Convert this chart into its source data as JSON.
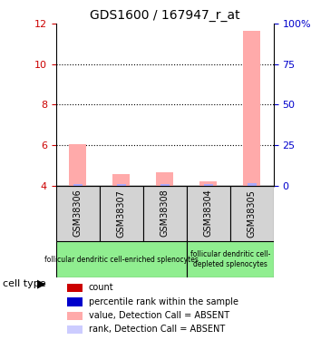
{
  "title": "GDS1600 / 167947_r_at",
  "samples": [
    "GSM38306",
    "GSM38307",
    "GSM38308",
    "GSM38304",
    "GSM38305"
  ],
  "pink_bar_values": [
    6.05,
    4.55,
    4.65,
    4.2,
    11.65
  ],
  "blue_bar_values": [
    4.05,
    4.05,
    4.05,
    4.05,
    4.1
  ],
  "ylim": [
    4,
    12
  ],
  "yticks_left": [
    4,
    6,
    8,
    10,
    12
  ],
  "yticks_right": [
    0,
    25,
    50,
    75,
    100
  ],
  "ylabel_left_color": "#cc0000",
  "ylabel_right_color": "#0000cc",
  "group1_samples": [
    "GSM38306",
    "GSM38307",
    "GSM38308"
  ],
  "group2_samples": [
    "GSM38304",
    "GSM38305"
  ],
  "group1_label": "follicular dendritic cell-enriched splenocytes",
  "group2_label": "follicular dendritic cell-\ndepleted splenocytes",
  "group1_color": "#90ee90",
  "group2_color": "#90ee90",
  "sample_box_color": "#d3d3d3",
  "cell_type_label": "cell type",
  "legend_items": [
    {
      "color": "#cc0000",
      "label": "count"
    },
    {
      "color": "#0000cc",
      "label": "percentile rank within the sample"
    },
    {
      "color": "#ffaaaa",
      "label": "value, Detection Call = ABSENT"
    },
    {
      "color": "#ccccff",
      "label": "rank, Detection Call = ABSENT"
    }
  ],
  "bar_width": 0.4,
  "pink_color": "#ffaaaa",
  "blue_color": "#aaaaff",
  "legend_square_color_count": "#cc0000",
  "legend_square_color_percentile": "#0000cc",
  "legend_square_color_value": "#ffaaaa",
  "legend_square_color_rank": "#ccccff"
}
